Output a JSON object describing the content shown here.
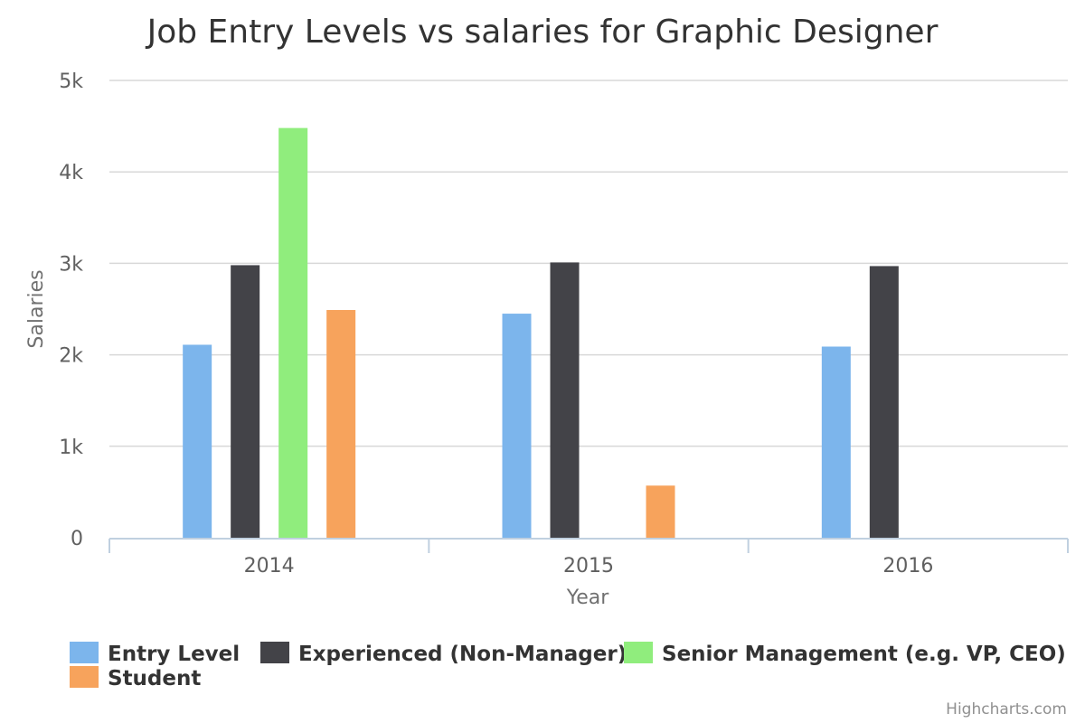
{
  "chart_data": {
    "type": "bar",
    "title": "Job Entry Levels vs salaries for Graphic Designer",
    "xlabel": "Year",
    "ylabel": "Salaries",
    "categories": [
      "2014",
      "2015",
      "2016"
    ],
    "ylim": [
      0,
      5000
    ],
    "yticks": [
      {
        "value": 0,
        "label": "0"
      },
      {
        "value": 1000,
        "label": "1k"
      },
      {
        "value": 2000,
        "label": "2k"
      },
      {
        "value": 3000,
        "label": "3k"
      },
      {
        "value": 4000,
        "label": "4k"
      },
      {
        "value": 5000,
        "label": "5k"
      }
    ],
    "grid": true,
    "legend_position": "bottom",
    "series": [
      {
        "name": "Entry Level",
        "color": "#7cb5ec",
        "values": [
          2110,
          2450,
          2090
        ]
      },
      {
        "name": "Experienced (Non-Manager)",
        "color": "#434348",
        "values": [
          2980,
          3010,
          2970
        ]
      },
      {
        "name": "Senior Management (e.g. VP, CEO)",
        "color": "#90ed7d",
        "values": [
          4480,
          null,
          null
        ]
      },
      {
        "name": "Student",
        "color": "#f7a35c",
        "values": [
          2490,
          570,
          null
        ]
      }
    ],
    "credits": "Highcharts.com"
  }
}
